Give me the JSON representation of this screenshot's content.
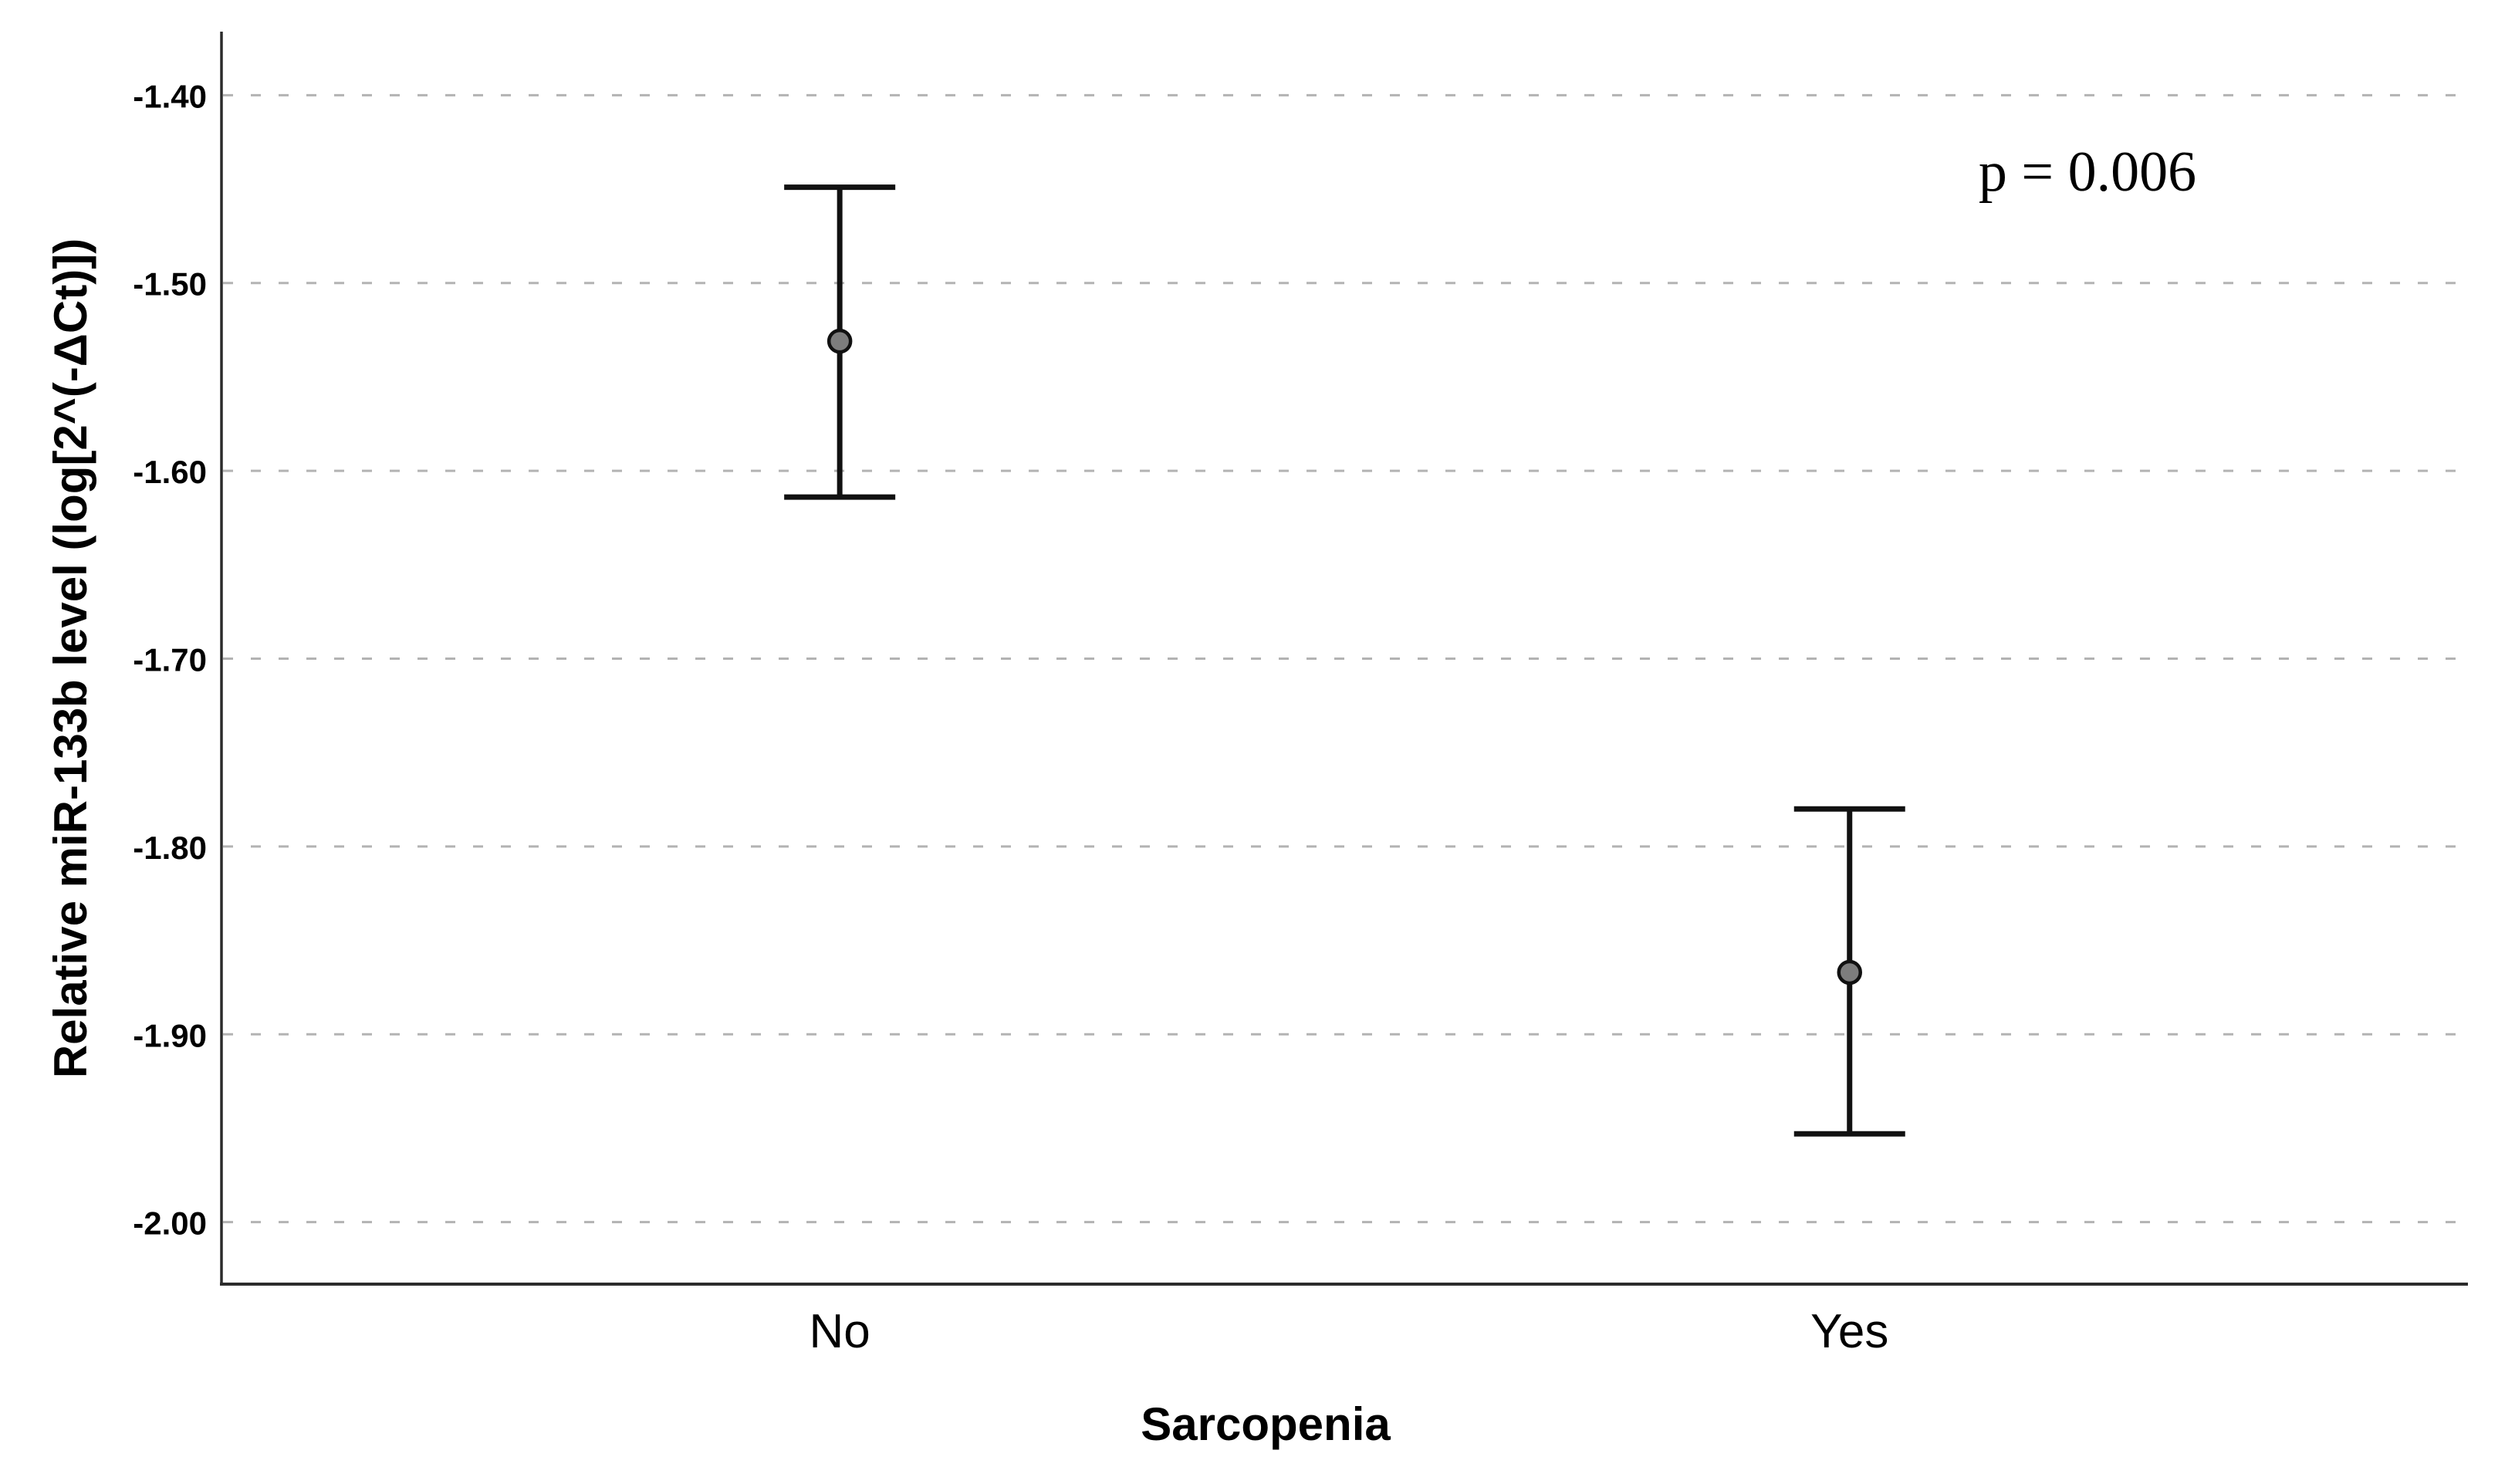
{
  "chart_data": {
    "type": "errorbar",
    "title": "",
    "xlabel": "Sarcopenia",
    "ylabel": "Relative miR-133b level (log[2^(-ΔCt)])",
    "categories": [
      "No",
      "Yes"
    ],
    "series": [
      {
        "name": "mean",
        "values": [
          -1.531,
          -1.867
        ]
      },
      {
        "name": "ci_upper",
        "values": [
          -1.449,
          -1.78
        ]
      },
      {
        "name": "ci_lower",
        "values": [
          -1.614,
          -1.953
        ]
      }
    ],
    "annotation": {
      "text": "p = 0.006",
      "position": "top-right"
    },
    "y_tick_labels": [
      "-1.40",
      "-1.50",
      "-1.60",
      "-1.70",
      "-1.80",
      "-1.90",
      "-2.00"
    ],
    "y_tick_values": [
      -1.4,
      -1.5,
      -1.6,
      -1.7,
      -1.8,
      -1.9,
      -2.0
    ],
    "ylim": [
      -2.033,
      -1.367
    ],
    "grid": "horizontal-dashed",
    "legend": "none",
    "colors": {
      "error_bar": "#111111",
      "marker_fill": "#7d7d7d",
      "marker_outline": "#111111",
      "gridline": "#b3b3b3",
      "axis": "#2b2b2b",
      "text": "#000000"
    }
  }
}
